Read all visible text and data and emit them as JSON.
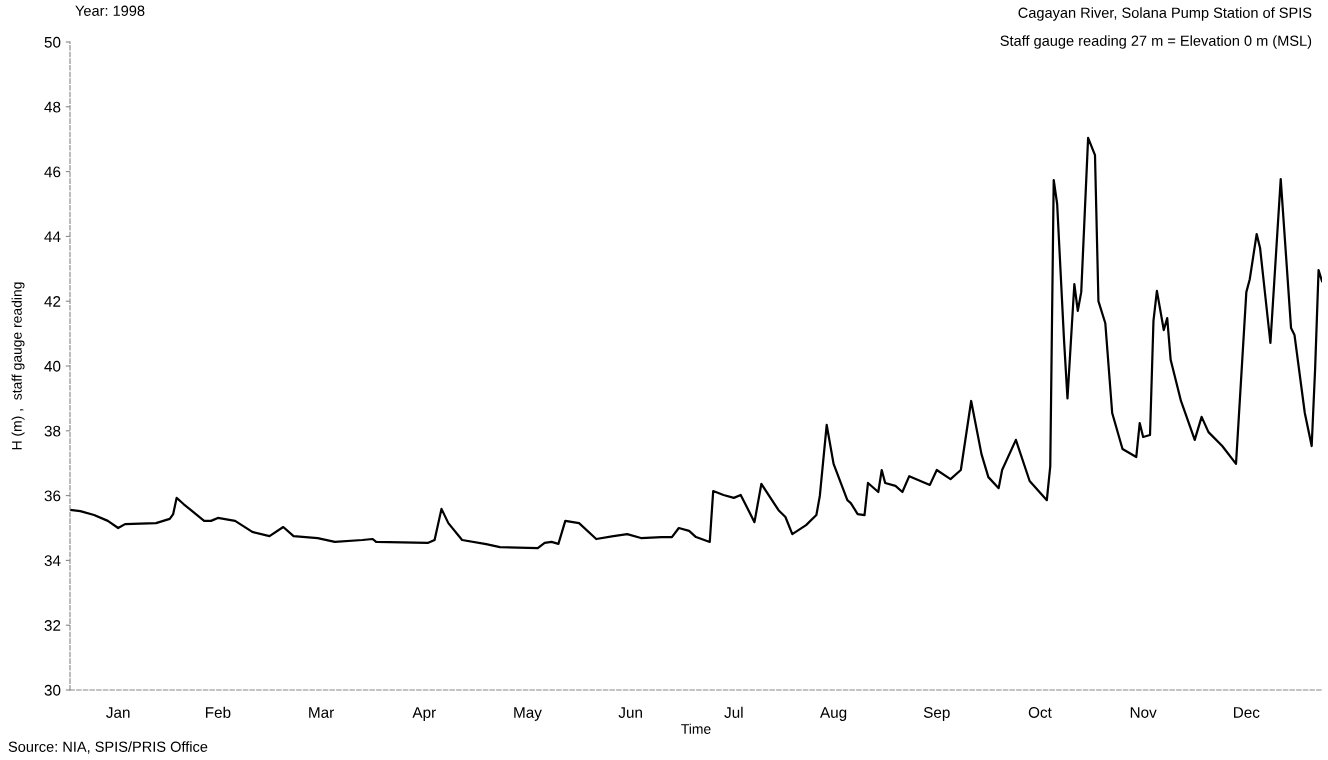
{
  "chart_data": {
    "type": "line",
    "title": "Cagayan River, Solana Pump Station of SPIS",
    "annotations": [
      "Year: 1998",
      "Staff gauge reading 27 m = Elevation 0 m (MSL)",
      "Source: NIA, SPIS/PRIS Office"
    ],
    "xlabel": "Time",
    "ylabel": "H (m) ,  staff gauge reading",
    "xlim": [
      "1998-01-01",
      "1998-12-31"
    ],
    "xticks": [
      {
        "value": "1998-01-15",
        "label": "Jan"
      },
      {
        "value": "1998-02-13",
        "label": "Feb"
      },
      {
        "value": "1998-03-15",
        "label": "Mar"
      },
      {
        "value": "1998-04-14",
        "label": "Apr"
      },
      {
        "value": "1998-05-14",
        "label": "May"
      },
      {
        "value": "1998-06-13",
        "label": "Jun"
      },
      {
        "value": "1998-07-13",
        "label": "Jul"
      },
      {
        "value": "1998-08-11",
        "label": "Aug"
      },
      {
        "value": "1998-09-10",
        "label": "Sep"
      },
      {
        "value": "1998-10-10",
        "label": "Oct"
      },
      {
        "value": "1998-11-09",
        "label": "Nov"
      },
      {
        "value": "1998-12-09",
        "label": "Dec"
      }
    ],
    "ylim": [
      30,
      50
    ],
    "yticks": [
      30,
      32,
      34,
      36,
      38,
      40,
      42,
      44,
      46,
      48,
      50
    ],
    "grid": false,
    "legend": false,
    "marker": "none",
    "line_style": "solid",
    "series": [
      {
        "color": "#000000",
        "x": [
          "1998-01-01",
          "1998-01-04",
          "1998-01-08",
          "1998-01-12",
          "1998-01-15",
          "1998-01-17",
          "1998-01-26",
          "1998-01-30",
          "1998-01-31",
          "1998-02-01",
          "1998-02-03",
          "1998-02-09",
          "1998-02-11",
          "1998-02-13",
          "1998-02-18",
          "1998-02-23",
          "1998-02-28",
          "1998-03-04",
          "1998-03-07",
          "1998-03-14",
          "1998-03-19",
          "1998-03-27",
          "1998-03-30",
          "1998-03-31",
          "1998-04-15",
          "1998-04-17",
          "1998-04-19",
          "1998-04-21",
          "1998-04-25",
          "1998-05-02",
          "1998-05-06",
          "1998-05-17",
          "1998-05-19",
          "1998-05-21",
          "1998-05-23",
          "1998-05-25",
          "1998-05-29",
          "1998-06-03",
          "1998-06-08",
          "1998-06-12",
          "1998-06-16",
          "1998-06-22",
          "1998-06-25",
          "1998-06-27",
          "1998-06-30",
          "1998-07-02",
          "1998-07-06",
          "1998-07-07",
          "1998-07-10",
          "1998-07-13",
          "1998-07-15",
          "1998-07-19",
          "1998-07-21",
          "1998-07-26",
          "1998-07-28",
          "1998-07-30",
          "1998-08-03",
          "1998-08-06",
          "1998-08-07",
          "1998-08-09",
          "1998-08-11",
          "1998-08-15",
          "1998-08-16",
          "1998-08-18",
          "1998-08-20",
          "1998-08-21",
          "1998-08-24",
          "1998-08-25",
          "1998-08-26",
          "1998-08-29",
          "1998-08-31",
          "1998-09-02",
          "1998-09-08",
          "1998-09-10",
          "1998-09-14",
          "1998-09-17",
          "1998-09-20",
          "1998-09-23",
          "1998-09-25",
          "1998-09-28",
          "1998-09-29",
          "1998-10-03",
          "1998-10-07",
          "1998-10-12",
          "1998-10-13",
          "1998-10-14",
          "1998-10-15",
          "1998-10-17",
          "1998-10-18",
          "1998-10-20",
          "1998-10-21",
          "1998-10-22",
          "1998-10-24",
          "1998-10-26",
          "1998-10-27",
          "1998-10-29",
          "1998-10-31",
          "1998-11-03",
          "1998-11-07",
          "1998-11-08",
          "1998-11-09",
          "1998-11-11",
          "1998-11-12",
          "1998-11-13",
          "1998-11-15",
          "1998-11-16",
          "1998-11-17",
          "1998-11-20",
          "1998-11-24",
          "1998-11-26",
          "1998-11-28",
          "1998-12-02",
          "1998-12-06",
          "1998-12-09",
          "1998-12-10",
          "1998-12-12",
          "1998-12-13",
          "1998-12-16",
          "1998-12-19",
          "1998-12-22",
          "1998-12-23",
          "1998-12-26",
          "1998-12-28",
          "1998-12-29",
          "1998-12-30",
          "1998-12-31"
        ],
        "values": [
          35.56,
          35.52,
          35.4,
          35.22,
          35.0,
          35.12,
          35.15,
          35.28,
          35.43,
          35.93,
          35.74,
          35.22,
          35.22,
          35.31,
          35.22,
          34.88,
          34.75,
          35.03,
          34.75,
          34.69,
          34.57,
          34.63,
          34.66,
          34.57,
          34.54,
          34.63,
          35.59,
          35.15,
          34.63,
          34.5,
          34.41,
          34.38,
          34.54,
          34.57,
          34.51,
          35.22,
          35.15,
          34.66,
          34.75,
          34.81,
          34.69,
          34.72,
          34.72,
          35.0,
          34.91,
          34.72,
          34.57,
          36.14,
          36.02,
          35.93,
          36.02,
          35.18,
          36.36,
          35.55,
          35.34,
          34.81,
          35.09,
          35.4,
          35.99,
          38.18,
          36.98,
          35.86,
          35.77,
          35.43,
          35.4,
          36.39,
          36.11,
          36.79,
          36.39,
          36.3,
          36.11,
          36.6,
          36.33,
          36.79,
          36.51,
          36.79,
          38.92,
          37.28,
          36.57,
          36.23,
          36.79,
          37.72,
          36.45,
          35.86,
          36.91,
          45.74,
          45.0,
          40.8,
          39.0,
          42.53,
          41.7,
          42.28,
          47.04,
          46.51,
          42.0,
          41.32,
          38.55,
          37.44,
          37.19,
          38.24,
          37.81,
          37.87,
          41.39,
          42.32,
          41.11,
          41.48,
          40.19,
          38.92,
          37.72,
          38.43,
          37.96,
          37.53,
          36.98,
          42.28,
          42.68,
          44.07,
          43.64,
          40.71,
          45.77,
          41.17,
          40.96,
          38.55,
          37.53,
          39.91,
          42.96,
          42.62
        ]
      }
    ]
  }
}
